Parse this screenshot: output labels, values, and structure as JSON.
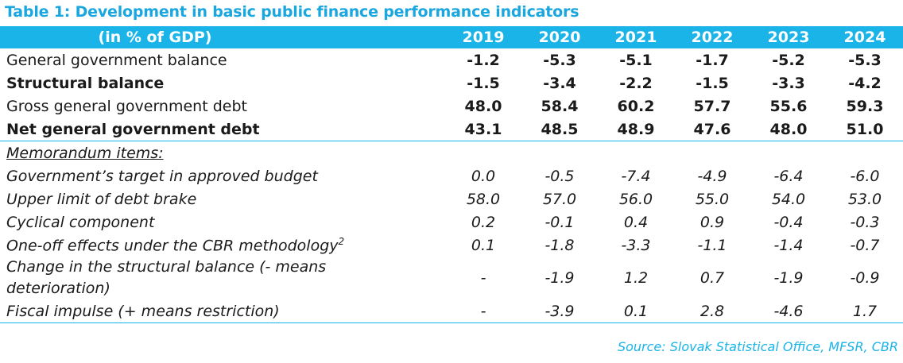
{
  "title": "Table 1: Development in basic public finance performance indicators",
  "header": {
    "label": "(in % of GDP)",
    "years": [
      "2019",
      "2020",
      "2021",
      "2022",
      "2023",
      "2024"
    ]
  },
  "main_rows": [
    {
      "label": "General government balance",
      "values": [
        "-1.2",
        "-5.3",
        "-5.1",
        "-1.7",
        "-5.2",
        "-5.3"
      ]
    },
    {
      "label": "Structural balance",
      "values": [
        "-1.5",
        "-3.4",
        "-2.2",
        "-1.5",
        "-3.3",
        "-4.2"
      ]
    },
    {
      "label": "Gross general government debt",
      "values": [
        "48.0",
        "58.4",
        "60.2",
        "57.7",
        "55.6",
        "59.3"
      ]
    },
    {
      "label": "Net general government debt",
      "values": [
        "43.1",
        "48.5",
        "48.9",
        "47.6",
        "48.0",
        "51.0"
      ]
    }
  ],
  "memo_heading": "Memorandum items:",
  "memo_rows": [
    {
      "label": "Government’s target in approved budget",
      "values": [
        "0.0",
        "-0.5",
        "-7.4",
        "-4.9",
        "-6.4",
        "-6.0"
      ]
    },
    {
      "label": "Upper limit of debt brake",
      "values": [
        "58.0",
        "57.0",
        "56.0",
        "55.0",
        "54.0",
        "53.0"
      ]
    },
    {
      "label": "Cyclical component",
      "values": [
        "0.2",
        "-0.1",
        "0.4",
        "0.9",
        "-0.4",
        "-0.3"
      ]
    },
    {
      "label": "One-off effects under the CBR methodology",
      "sup": "2",
      "values": [
        "0.1",
        "-1.8",
        "-3.3",
        "-1.1",
        "-1.4",
        "-0.7"
      ]
    },
    {
      "label": "Change in the structural balance (- means deterioration)",
      "values": [
        "-",
        "-1.9",
        "1.2",
        "0.7",
        "-1.9",
        "-0.9"
      ]
    },
    {
      "label": "Fiscal impulse (+ means restriction)",
      "values": [
        "-",
        "-3.9",
        "0.1",
        "2.8",
        "-4.6",
        "1.7"
      ]
    }
  ],
  "source": "Source: Slovak Statistical Office, MFSR, CBR",
  "colors": {
    "accent": "#1ab4e8",
    "title": "#1aa7df"
  }
}
